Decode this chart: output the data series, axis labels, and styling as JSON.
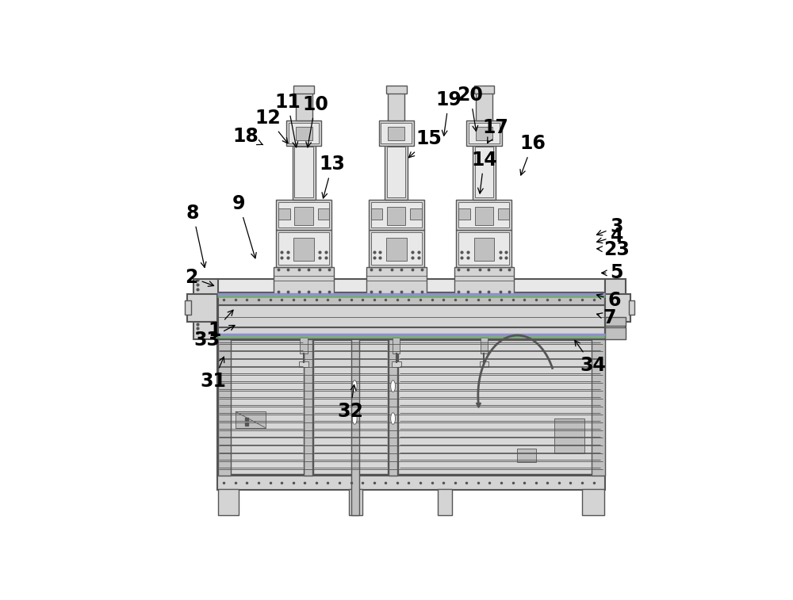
{
  "bg_color": "#ffffff",
  "lc": "#000000",
  "mc": "#d4d4d4",
  "me": "#555555",
  "mc2": "#c0c0c0",
  "mc3": "#e8e8e8",
  "purple": "#9090c8",
  "green": "#70a870",
  "figw": 10.0,
  "figh": 7.57,
  "dpi": 100,
  "labels": {
    "1": [
      0.085,
      0.44,
      0.13,
      0.49
    ],
    "2": [
      0.035,
      0.555,
      0.09,
      0.535
    ],
    "3": [
      0.955,
      0.665,
      0.905,
      0.645
    ],
    "4": [
      0.955,
      0.645,
      0.905,
      0.63
    ],
    "5": [
      0.955,
      0.565,
      0.915,
      0.565
    ],
    "6": [
      0.95,
      0.505,
      0.905,
      0.52
    ],
    "7": [
      0.94,
      0.468,
      0.905,
      0.478
    ],
    "8": [
      0.038,
      0.695,
      0.065,
      0.57
    ],
    "9": [
      0.138,
      0.715,
      0.175,
      0.59
    ],
    "10": [
      0.303,
      0.93,
      0.285,
      0.83
    ],
    "11": [
      0.243,
      0.935,
      0.263,
      0.83
    ],
    "12": [
      0.2,
      0.9,
      0.248,
      0.84
    ],
    "13": [
      0.34,
      0.8,
      0.318,
      0.72
    ],
    "14": [
      0.668,
      0.81,
      0.658,
      0.73
    ],
    "15": [
      0.548,
      0.855,
      0.5,
      0.81
    ],
    "16": [
      0.773,
      0.845,
      0.745,
      0.77
    ],
    "17": [
      0.693,
      0.88,
      0.672,
      0.84
    ],
    "18": [
      0.152,
      0.86,
      0.195,
      0.84
    ],
    "19": [
      0.592,
      0.94,
      0.58,
      0.855
    ],
    "20": [
      0.638,
      0.95,
      0.652,
      0.865
    ],
    "23": [
      0.955,
      0.615,
      0.905,
      0.618
    ],
    "31": [
      0.082,
      0.33,
      0.108,
      0.39
    ],
    "32": [
      0.378,
      0.265,
      0.388,
      0.33
    ],
    "33": [
      0.068,
      0.42,
      0.135,
      0.455
    ],
    "34": [
      0.903,
      0.365,
      0.86,
      0.425
    ]
  },
  "fs": 17,
  "fw": "bold"
}
